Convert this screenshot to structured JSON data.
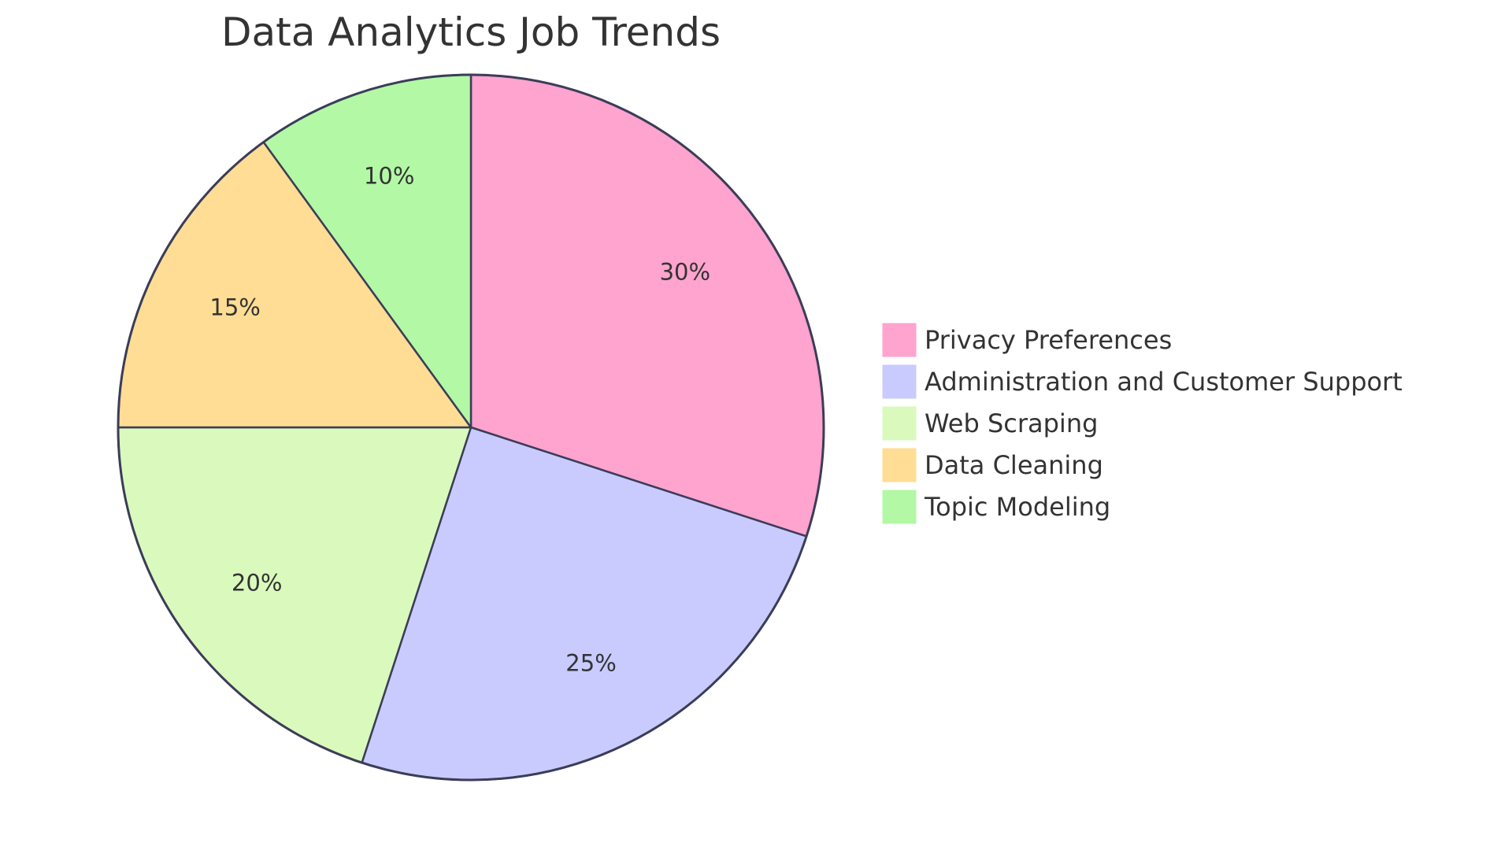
{
  "chart_data": {
    "type": "pie",
    "title": "Data Analytics Job Trends",
    "slices": [
      {
        "name": "Privacy Preferences",
        "value": 30,
        "label": "30%",
        "color": "#ffa3cf"
      },
      {
        "name": "Administration and Customer Support",
        "value": 25,
        "label": "25%",
        "color": "#c9cbff"
      },
      {
        "name": "Web Scraping",
        "value": 20,
        "label": "20%",
        "color": "#dafabd"
      },
      {
        "name": "Data Cleaning",
        "value": 15,
        "label": "15%",
        "color": "#ffdd94"
      },
      {
        "name": "Topic Modeling",
        "value": 10,
        "label": "10%",
        "color": "#b3f8a5"
      }
    ],
    "legend": "right",
    "stroke_color": "#3b3d58"
  }
}
